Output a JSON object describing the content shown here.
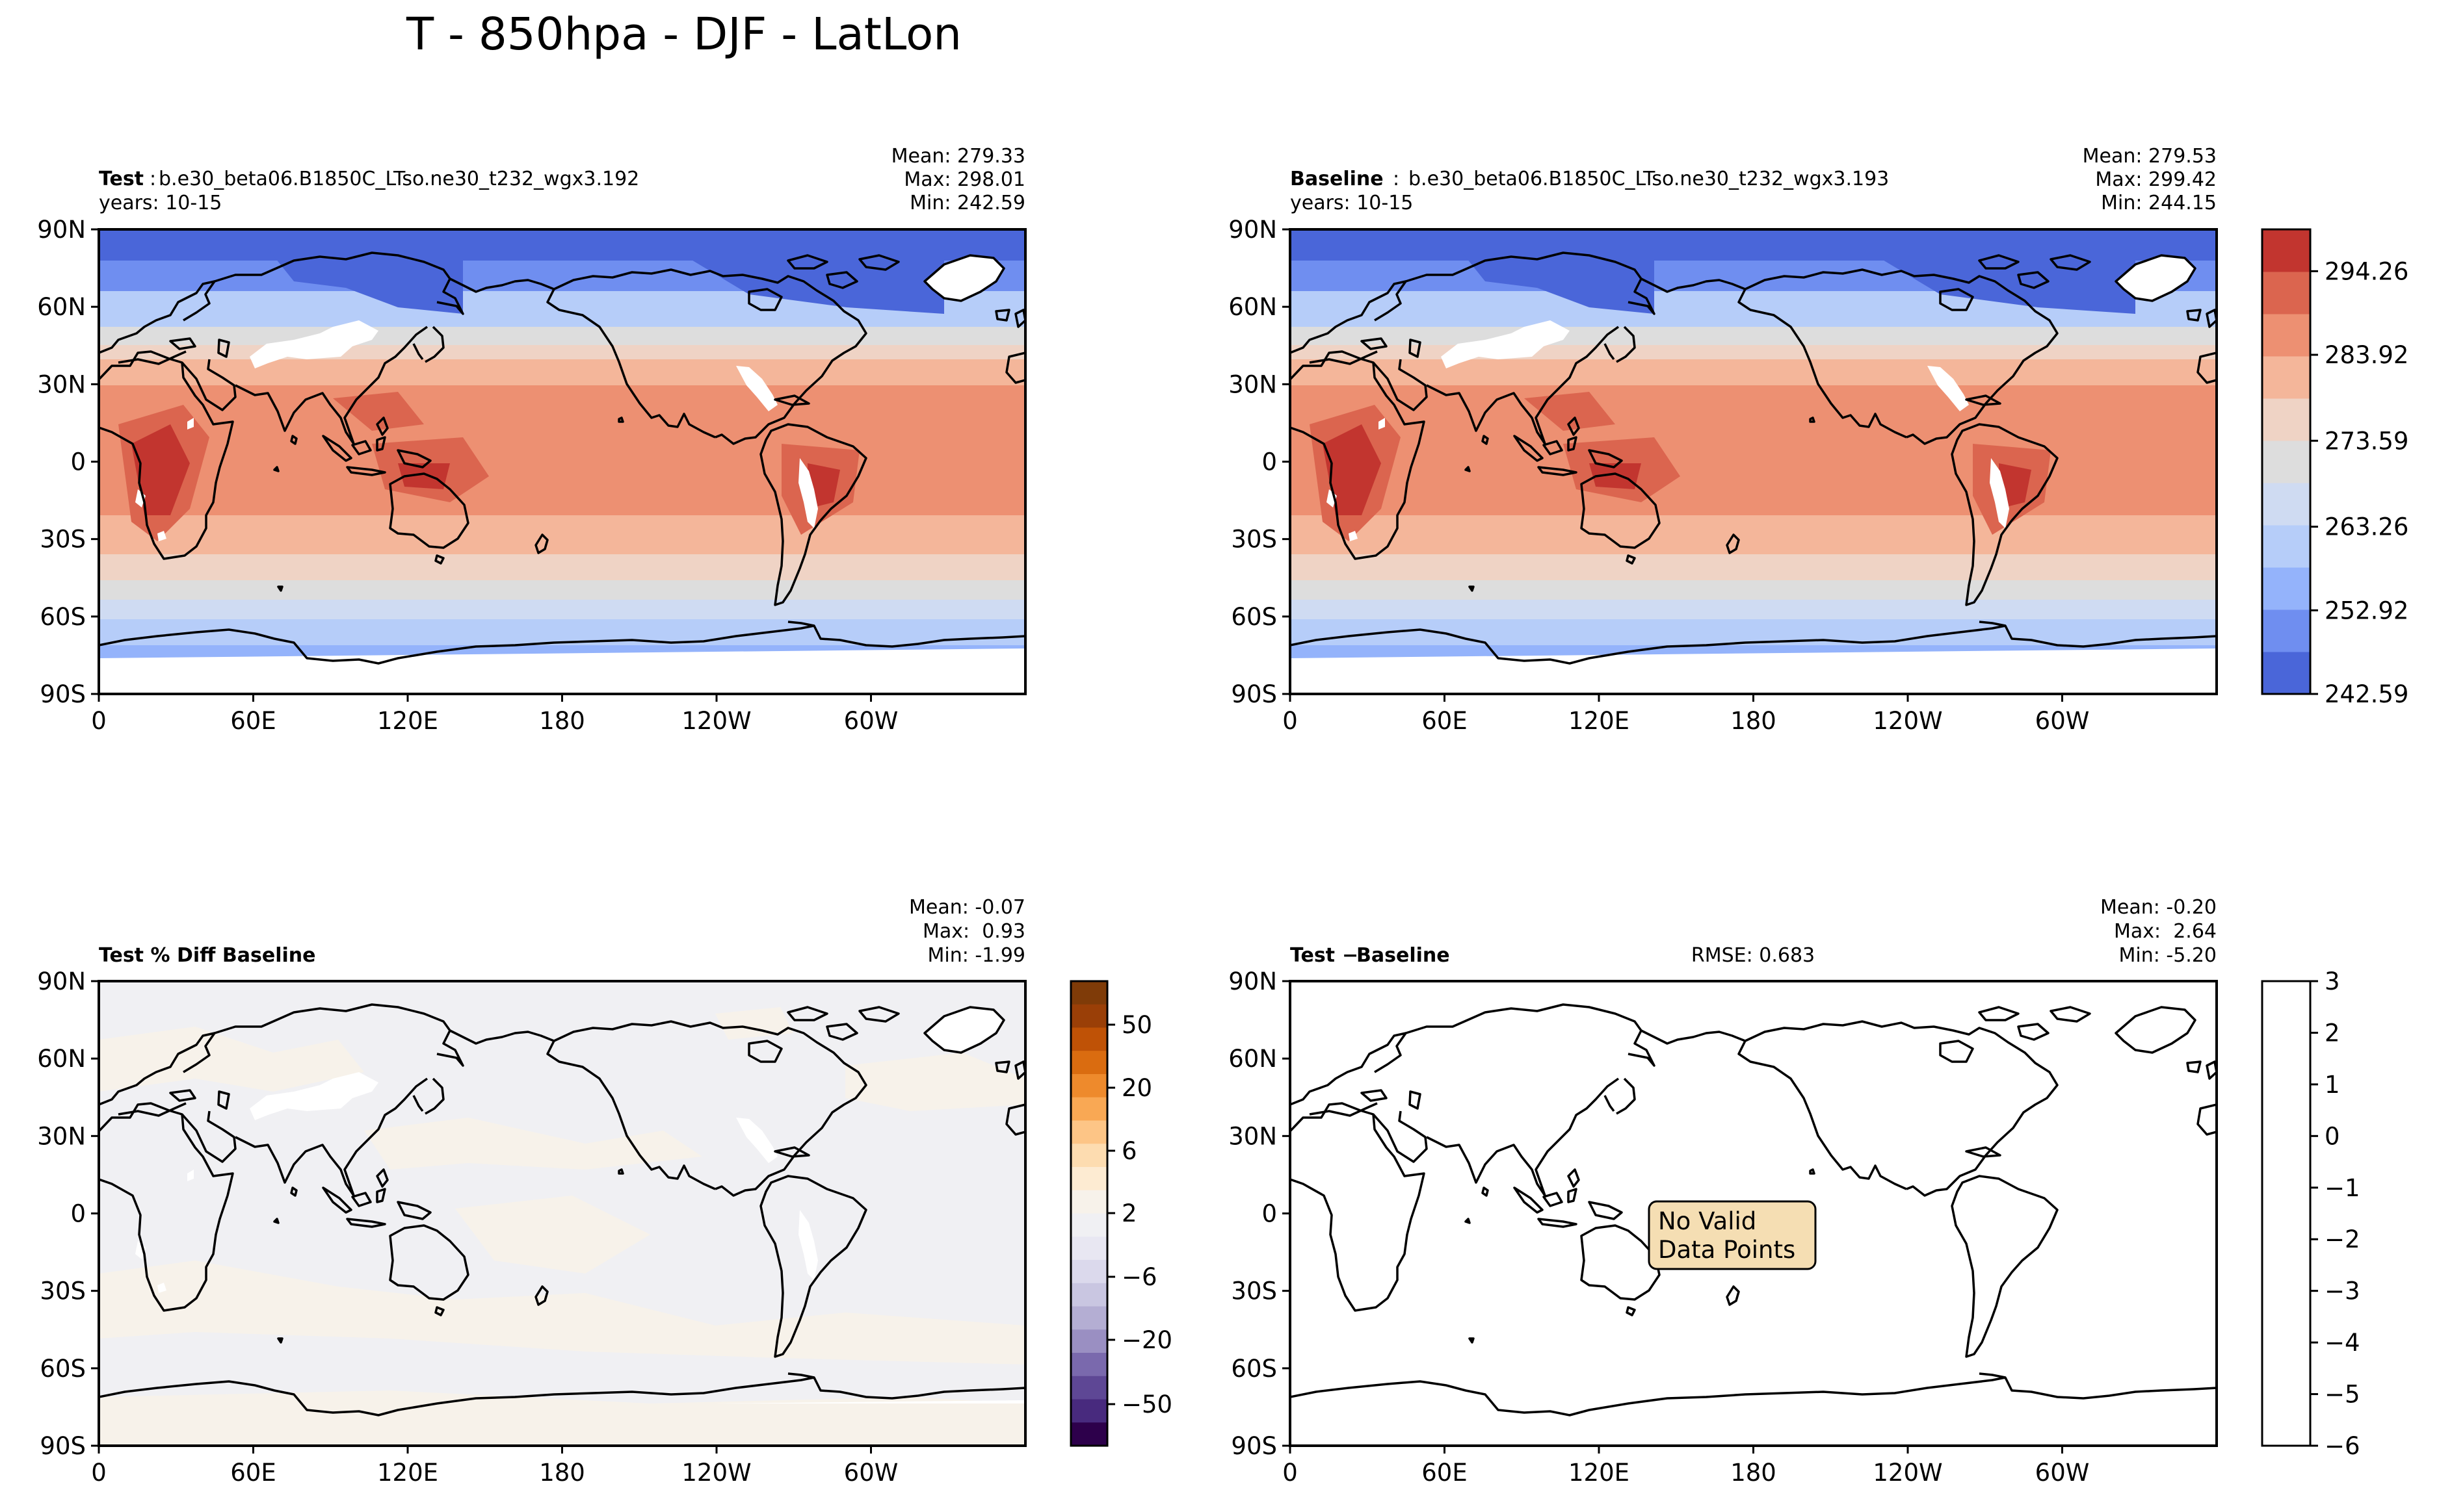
{
  "figure_title": "T - 850hpa - DJF - LatLon",
  "colors": {
    "abs_levels": [
      "#4a66d9",
      "#6f8ef0",
      "#94b3fb",
      "#b6cdf9",
      "#cfdbf2",
      "#dddddd",
      "#efd3c5",
      "#f4b69a",
      "#ed9072",
      "#db654f",
      "#c2352f"
    ],
    "pct_levels": [
      "#2d004b",
      "#482a7e",
      "#5e4795",
      "#7a69ad",
      "#9a8fc2",
      "#b4aed3",
      "#c9c6e1",
      "#dbd9ec",
      "#e8e7f2",
      "#f0f0f3",
      "#f7f2ea",
      "#fdebd2",
      "#fddcb0",
      "#fdc586",
      "#f9a854",
      "#ee8a2c",
      "#da6c10",
      "#bf5206",
      "#9a3f07",
      "#7f3b08"
    ],
    "land_outline": "#000000",
    "missing": "#ffffff",
    "annotation_bg": "#f5deb3"
  },
  "axes": {
    "lat_ticks": [
      "90N",
      "60N",
      "30N",
      "0",
      "30S",
      "60S",
      "90S"
    ],
    "lon_ticks": [
      "0",
      "60E",
      "120E",
      "180",
      "120W",
      "60W"
    ]
  },
  "panels": {
    "test": {
      "name": "Test",
      "case": "b.e30_beta06.B1850C_LTso.ne30_t232_wgx3.192",
      "years": "years: 10-15",
      "mean": "Mean: 279.33",
      "max": "Max: 298.01",
      "min": "Min: 242.59"
    },
    "baseline": {
      "name": "Baseline",
      "case": "b.e30_beta06.B1850C_LTso.ne30_t232_wgx3.193",
      "years": "years: 10-15",
      "mean": "Mean: 279.53",
      "max": "Max: 299.42",
      "min": "Min: 244.15"
    },
    "pct_diff": {
      "name": "Test % Diff Baseline",
      "mean": "Mean: -0.07",
      "max": "Max:  0.93",
      "min": "Min: -1.99"
    },
    "diff": {
      "name": "Test",
      "name2": "Baseline",
      "rmse": "RMSE: 0.683",
      "mean": "Mean: -0.20",
      "max": "Max:  2.64",
      "min": "Min: -5.20",
      "annotation_line1": "No Valid",
      "annotation_line2": "Data Points"
    }
  },
  "colorbars": {
    "abs_ticks": [
      "294.26",
      "283.92",
      "273.59",
      "263.26",
      "252.92",
      "242.59"
    ],
    "pct_ticks": [
      "50",
      "20",
      "6",
      "2",
      "−6",
      "−20",
      "−50"
    ],
    "diff_ticks": [
      "3",
      "2",
      "1",
      "0",
      "−1",
      "−2",
      "−3",
      "−4",
      "−5",
      "−6"
    ]
  },
  "chart_data": [
    {
      "type": "heatmap",
      "title": "Test : b.e30_beta06.B1850C_LTso.ne30_t232_wgx3.192",
      "variable": "T",
      "level": "850hpa",
      "season": "DJF",
      "projection": "LatLon",
      "lon_range": [
        0,
        360
      ],
      "lat_range": [
        -90,
        90
      ],
      "years": "10-15",
      "mean": 279.33,
      "max": 298.01,
      "min": 242.59,
      "colorbar_levels": [
        242.59,
        252.92,
        263.26,
        273.59,
        283.92,
        294.26
      ]
    },
    {
      "type": "heatmap",
      "title": "Baseline : b.e30_beta06.B1850C_LTso.ne30_t232_wgx3.193",
      "variable": "T",
      "level": "850hpa",
      "season": "DJF",
      "projection": "LatLon",
      "lon_range": [
        0,
        360
      ],
      "lat_range": [
        -90,
        90
      ],
      "years": "10-15",
      "mean": 279.53,
      "max": 299.42,
      "min": 244.15,
      "colorbar_levels": [
        242.59,
        252.92,
        263.26,
        273.59,
        283.92,
        294.26
      ]
    },
    {
      "type": "heatmap",
      "title": "Test % Diff Baseline",
      "lon_range": [
        0,
        360
      ],
      "lat_range": [
        -90,
        90
      ],
      "mean": -0.07,
      "max": 0.93,
      "min": -1.99,
      "colorbar_levels": [
        -50,
        -20,
        -6,
        2,
        6,
        20,
        50
      ]
    },
    {
      "type": "heatmap",
      "title": "Test − Baseline",
      "lon_range": [
        0,
        360
      ],
      "lat_range": [
        -90,
        90
      ],
      "mean": -0.2,
      "max": 2.64,
      "min": -5.2,
      "rmse": 0.683,
      "colorbar_levels": [
        -6,
        -5,
        -4,
        -3,
        -2,
        -1,
        0,
        1,
        2,
        3
      ],
      "annotation": "No Valid Data Points"
    }
  ]
}
